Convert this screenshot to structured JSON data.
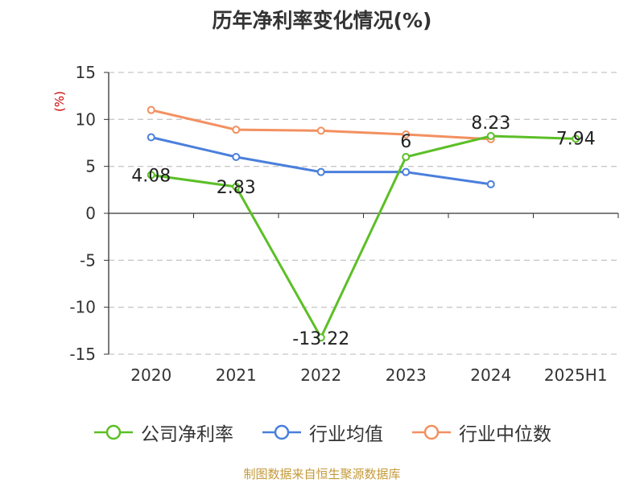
{
  "chart_data": {
    "type": "line",
    "title": "历年净利率变化情况(%)",
    "ylabel": "(%)",
    "xlabel": "",
    "ylim": [
      -15,
      15
    ],
    "yticks": [
      -15,
      -10,
      -5,
      0,
      5,
      10,
      15
    ],
    "categories": [
      "2020",
      "2021",
      "2022",
      "2023",
      "2024",
      "2025H1"
    ],
    "grid": true,
    "legend_position": "bottom",
    "series": [
      {
        "name": "公司净利率",
        "color": "#5cbf26",
        "values": [
          4.08,
          2.83,
          -13.22,
          6,
          8.23,
          7.94
        ],
        "labels": [
          "4.08",
          "2.83",
          "-13.22",
          "6",
          "8.23",
          "7.94"
        ]
      },
      {
        "name": "行业均值",
        "color": "#4a7fdc",
        "values": [
          8.1,
          6.0,
          4.4,
          4.4,
          3.1,
          null
        ]
      },
      {
        "name": "行业中位数",
        "color": "#f39060",
        "values": [
          11.0,
          8.9,
          8.8,
          8.4,
          7.9,
          null
        ]
      }
    ]
  },
  "source_note": "制图数据来自恒生聚源数据库",
  "colors": {
    "axis": "#333333",
    "grid": "#c8c8c8",
    "ylabel": "#cc0000",
    "source": "#c49a3a"
  }
}
